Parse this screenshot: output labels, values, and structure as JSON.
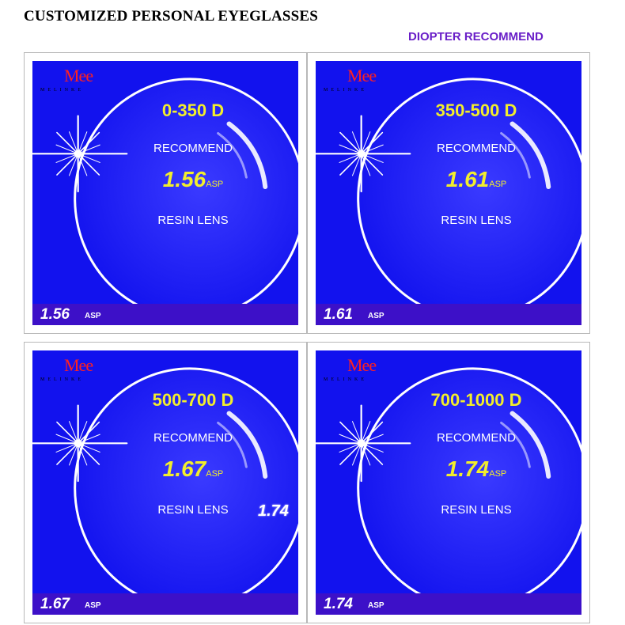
{
  "header": {
    "title": "CUSTOMIZED PERSONAL EYEGLASSES",
    "subtitle": "DIOPTER RECOMMEND"
  },
  "colors": {
    "panel_blue": "#1212ee",
    "bar_purple": "#3d10c8",
    "highlight_yellow": "#f2ee2c",
    "subtitle_purple": "#6a1fc8",
    "brand_red": "#ff2020"
  },
  "panels": [
    {
      "brand": "Mee",
      "brand_sub": "MELINKE",
      "range": "0-350 D",
      "recommend": "RECOMMEND",
      "index": "1.56",
      "index_suffix": "ASP",
      "lens_type": "RESIN LENS",
      "bottom_index": "1.56",
      "bottom_suffix": "ASP"
    },
    {
      "brand": "Mee",
      "brand_sub": "MELINKE",
      "range": "350-500 D",
      "recommend": "RECOMMEND",
      "index": "1.61",
      "index_suffix": "ASP",
      "lens_type": "RESIN LENS",
      "bottom_index": "1.61",
      "bottom_suffix": "ASP"
    },
    {
      "brand": "Mee",
      "brand_sub": "MELINKE",
      "range": "500-700 D",
      "recommend": "RECOMMEND",
      "index": "1.67",
      "index_suffix": "ASP",
      "lens_type": "RESIN LENS",
      "bottom_index": "1.67",
      "bottom_suffix": "ASP"
    },
    {
      "brand": "Mee",
      "brand_sub": "MELINKE",
      "range": "700-1000 D",
      "recommend": "RECOMMEND",
      "index": "1.74",
      "index_suffix": "ASP",
      "lens_type": "RESIN LENS",
      "bottom_index": "1.74",
      "bottom_suffix": "ASP"
    }
  ],
  "overlay_text": "1.74"
}
